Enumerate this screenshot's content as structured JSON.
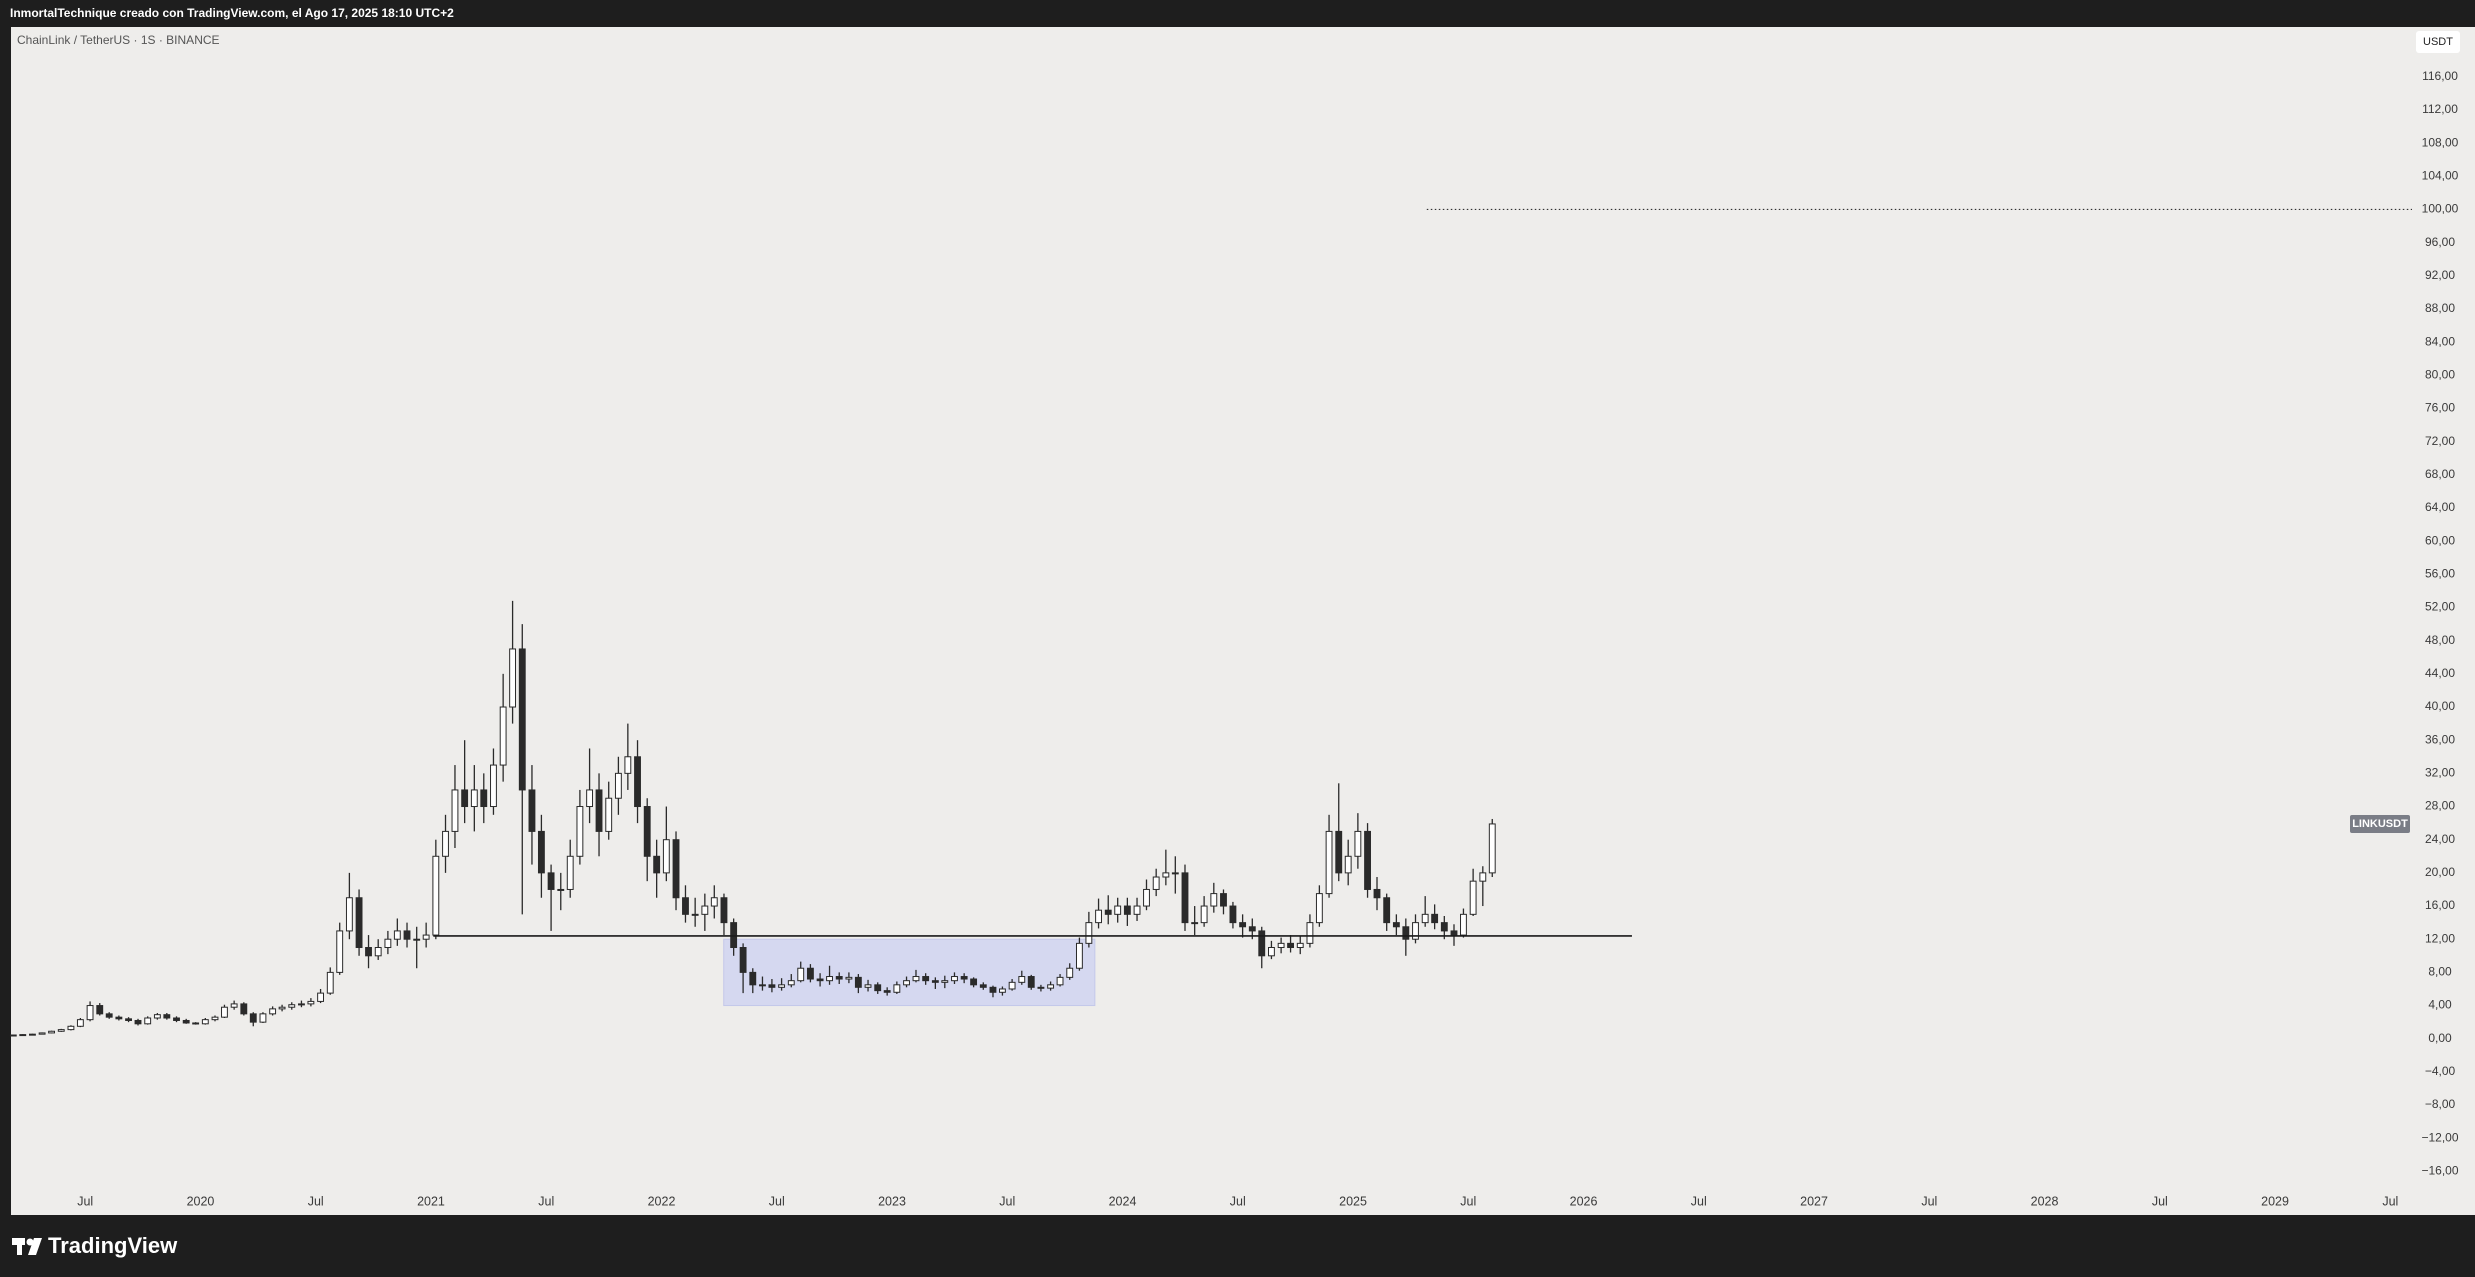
{
  "header": {
    "title": "InmortalTechnique creado con TradingView.com, el Ago 17, 2025 18:10 UTC+2"
  },
  "chart_data": {
    "type": "candlestick",
    "title": "ChainLink / TetherUS · 1S · BINANCE",
    "currency": "USDT",
    "symbol_label": "LINKUSDT",
    "up_color": "#ffffff",
    "down_color": "#2a2a2a",
    "edge_color": "#2a2a2a",
    "grid": false,
    "x": [
      2019.188,
      2019.229,
      2019.271,
      2019.313,
      2019.354,
      2019.396,
      2019.438,
      2019.479,
      2019.521,
      2019.563,
      2019.604,
      2019.646,
      2019.688,
      2019.729,
      2019.771,
      2019.813,
      2019.854,
      2019.896,
      2019.938,
      2019.979,
      2020.021,
      2020.063,
      2020.104,
      2020.146,
      2020.188,
      2020.229,
      2020.271,
      2020.313,
      2020.354,
      2020.396,
      2020.438,
      2020.479,
      2020.521,
      2020.563,
      2020.604,
      2020.646,
      2020.688,
      2020.729,
      2020.771,
      2020.813,
      2020.854,
      2020.896,
      2020.938,
      2020.979,
      2021.021,
      2021.063,
      2021.104,
      2021.146,
      2021.188,
      2021.229,
      2021.271,
      2021.313,
      2021.354,
      2021.396,
      2021.438,
      2021.479,
      2021.521,
      2021.563,
      2021.604,
      2021.646,
      2021.688,
      2021.729,
      2021.771,
      2021.813,
      2021.854,
      2021.896,
      2021.938,
      2021.979,
      2022.021,
      2022.063,
      2022.104,
      2022.146,
      2022.188,
      2022.229,
      2022.271,
      2022.313,
      2022.354,
      2022.396,
      2022.438,
      2022.479,
      2022.521,
      2022.563,
      2022.604,
      2022.646,
      2022.688,
      2022.729,
      2022.771,
      2022.813,
      2022.854,
      2022.896,
      2022.938,
      2022.979,
      2023.021,
      2023.063,
      2023.104,
      2023.146,
      2023.188,
      2023.229,
      2023.271,
      2023.313,
      2023.354,
      2023.396,
      2023.438,
      2023.479,
      2023.521,
      2023.563,
      2023.604,
      2023.646,
      2023.688,
      2023.729,
      2023.771,
      2023.813,
      2023.854,
      2023.896,
      2023.938,
      2023.979,
      2024.021,
      2024.063,
      2024.104,
      2024.146,
      2024.188,
      2024.229,
      2024.271,
      2024.313,
      2024.354,
      2024.396,
      2024.438,
      2024.479,
      2024.521,
      2024.563,
      2024.604,
      2024.646,
      2024.688,
      2024.729,
      2024.771,
      2024.813,
      2024.854,
      2024.896,
      2024.938,
      2024.979,
      2025.021,
      2025.063,
      2025.104,
      2025.146,
      2025.188,
      2025.229,
      2025.271,
      2025.313,
      2025.354,
      2025.396,
      2025.438,
      2025.479,
      2025.521,
      2025.563,
      2025.604
    ],
    "open": [
      0.4,
      0.45,
      0.5,
      0.55,
      0.7,
      0.9,
      1.1,
      1.5,
      2.3,
      4,
      3,
      2.6,
      2.4,
      2.2,
      1.8,
      2.5,
      2.9,
      2.5,
      2.2,
      1.9,
      1.8,
      2.3,
      2.6,
      3.8,
      4.2,
      3,
      2,
      3,
      3.6,
      3.8,
      4.1,
      4.2,
      4.5,
      5.5,
      8,
      13,
      17,
      11,
      10,
      11,
      12,
      13,
      12,
      12,
      12.5,
      22,
      25,
      30,
      28,
      30,
      28,
      33,
      40,
      47,
      30,
      25,
      20,
      18,
      18,
      22,
      28,
      30,
      25,
      29,
      32,
      34,
      28,
      22,
      20,
      24,
      17,
      15,
      15,
      16,
      17,
      14,
      11,
      8,
      6.5,
      6.5,
      6.2,
      6.5,
      7,
      8.5,
      7.2,
      7,
      7.5,
      7.2,
      7.4,
      6.2,
      6.5,
      5.8,
      5.6,
      6.5,
      7,
      7.5,
      7,
      6.8,
      7,
      7.5,
      7.2,
      6.5,
      6.2,
      5.6,
      6,
      6.8,
      7.5,
      6.2,
      6.1,
      6.5,
      7.4,
      8.5,
      11.5,
      14,
      15.5,
      15,
      16,
      15,
      16,
      18,
      19.5,
      20,
      20,
      14,
      14,
      16,
      17.5,
      16,
      14,
      13.5,
      13,
      10,
      11,
      11.5,
      11,
      11.5,
      14,
      17.5,
      25,
      20,
      22,
      25,
      18,
      17,
      14,
      13.5,
      12,
      14,
      15,
      14,
      13,
      12.5,
      15,
      19,
      20
    ],
    "high": [
      0.48,
      0.54,
      0.6,
      0.76,
      0.97,
      1.19,
      1.62,
      2.5,
      4.5,
      4.3,
      3.2,
      2.8,
      2.6,
      2.4,
      2.7,
      3.1,
      3.1,
      2.7,
      2.4,
      2,
      2.5,
      2.8,
      4.1,
      4.6,
      4.4,
      3.2,
      3.2,
      3.9,
      4.1,
      4.4,
      4.6,
      4.9,
      6,
      8.6,
      14,
      20,
      18,
      12.5,
      12,
      13,
      14.5,
      14,
      13.5,
      14,
      24,
      27,
      33,
      36,
      33,
      32,
      35,
      44,
      52.8,
      50,
      33,
      27,
      21,
      20,
      24,
      30,
      35,
      32,
      31,
      34,
      38,
      36,
      29,
      24,
      28,
      25,
      18.5,
      17,
      17.5,
      18.5,
      17.5,
      14.5,
      11.5,
      8.5,
      7.5,
      7.2,
      7.3,
      7.8,
      9.3,
      9,
      7.9,
      8.8,
      8,
      8,
      7.8,
      7.1,
      6.8,
      6.2,
      6.9,
      7.5,
      8.3,
      7.9,
      7.4,
      7.6,
      8,
      7.9,
      7.4,
      6.8,
      6.4,
      6.3,
      7.2,
      8.2,
      7.7,
      6.5,
      6.9,
      7.8,
      9.1,
      12.2,
      15.3,
      16.9,
      17.3,
      17,
      17,
      17,
      19.2,
      20.5,
      22.8,
      22,
      21,
      16,
      17.2,
      18.8,
      18,
      16.5,
      15,
      14.5,
      13.5,
      11.8,
      12.2,
      12.5,
      12.4,
      15,
      18.5,
      27,
      30.8,
      24,
      27.2,
      26,
      19.5,
      17.5,
      15,
      14.5,
      15,
      17.2,
      16.2,
      14.8,
      13.8,
      15.7,
      20.5,
      20.8,
      26.5
    ],
    "low": [
      0.37,
      0.42,
      0.46,
      0.51,
      0.64,
      0.83,
      1,
      1.4,
      2.1,
      2.8,
      2.4,
      2.2,
      2,
      1.6,
      1.7,
      2.3,
      2.3,
      2,
      1.8,
      1.7,
      1.7,
      2.1,
      2.5,
      3.5,
      2.8,
      1.5,
      1.9,
      2.8,
      3.3,
      3.5,
      3.8,
      3.9,
      4.3,
      5.3,
      7.7,
      12,
      10,
      8.5,
      9.5,
      10.2,
      11.2,
      11,
      8.5,
      11,
      12,
      20,
      23,
      26,
      25,
      26,
      27,
      31,
      38,
      15,
      21,
      17,
      13,
      15.5,
      17,
      21,
      26,
      22,
      24,
      27,
      30,
      26,
      19,
      17,
      19,
      15.5,
      14,
      13.5,
      13,
      14.5,
      12.5,
      10,
      5.5,
      5.5,
      5.8,
      5.6,
      5.8,
      6.2,
      6.8,
      6.8,
      6.3,
      6.5,
      6.6,
      6.7,
      5.5,
      5.7,
      5.4,
      5.2,
      5.4,
      6.2,
      6.8,
      6.5,
      6,
      6.1,
      6.6,
      6.7,
      6.2,
      5.9,
      5,
      5.2,
      5.8,
      6.5,
      5.9,
      5.7,
      5.8,
      6.3,
      7.1,
      8.2,
      11,
      13.3,
      13.8,
      14,
      13.6,
      14.2,
      15.5,
      17.2,
      18.5,
      17.5,
      13,
      12.5,
      13.5,
      15.2,
      15,
      13.3,
      12.2,
      12,
      8.5,
      9.6,
      10.3,
      10.4,
      10.2,
      11,
      13.5,
      17,
      19,
      18.5,
      20.5,
      17,
      15.5,
      13,
      12.5,
      10,
      11.5,
      13.5,
      13.2,
      12,
      11.2,
      12.2,
      14.8,
      16,
      19.5
    ],
    "close": [
      0.45,
      0.5,
      0.55,
      0.7,
      0.9,
      1.1,
      1.5,
      2.3,
      4,
      3,
      2.6,
      2.4,
      2.2,
      1.8,
      2.5,
      2.9,
      2.5,
      2.2,
      1.9,
      1.8,
      2.3,
      2.6,
      3.8,
      4.2,
      3,
      2,
      3,
      3.6,
      3.8,
      4.1,
      4.2,
      4.5,
      5.5,
      8,
      13,
      17,
      11,
      10,
      11,
      12,
      13,
      12,
      12,
      12.5,
      22,
      25,
      30,
      28,
      30,
      28,
      33,
      40,
      47,
      30,
      25,
      20,
      18,
      18,
      22,
      28,
      30,
      25,
      29,
      32,
      34,
      28,
      22,
      20,
      24,
      17,
      15,
      15,
      16,
      17,
      14,
      11,
      8,
      6.5,
      6.5,
      6.2,
      6.5,
      7,
      8.5,
      7.2,
      7,
      7.5,
      7.2,
      7.4,
      6.2,
      6.5,
      5.8,
      5.6,
      6.5,
      7,
      7.5,
      7,
      6.8,
      7,
      7.5,
      7.2,
      6.5,
      6.2,
      5.6,
      6,
      6.8,
      7.5,
      6.2,
      6.1,
      6.5,
      7.4,
      8.5,
      11.5,
      14,
      15.5,
      15,
      16,
      15,
      16,
      18,
      19.5,
      20,
      20,
      14,
      14,
      16,
      17.5,
      16,
      14,
      13.5,
      13,
      10,
      11,
      11.5,
      11,
      11.5,
      14,
      17.5,
      25,
      20,
      22,
      25,
      18,
      17,
      14,
      13.5,
      12,
      14,
      15,
      14,
      13,
      12.5,
      15,
      19,
      20,
      25.9
    ],
    "xlim": [
      2019.178,
      2029.594
    ],
    "xticks": [
      {
        "value": 2019.5,
        "label": "Jul"
      },
      2020,
      {
        "value": 2020.5,
        "label": "Jul"
      },
      2021,
      {
        "value": 2021.5,
        "label": "Jul"
      },
      2022,
      {
        "value": 2022.5,
        "label": "Jul"
      },
      2023,
      {
        "value": 2023.5,
        "label": "Jul"
      },
      2024,
      {
        "value": 2024.5,
        "label": "Jul"
      },
      2025,
      {
        "value": 2025.5,
        "label": "Jul"
      },
      2026,
      {
        "value": 2026.5,
        "label": "Jul"
      },
      2027,
      {
        "value": 2027.5,
        "label": "Jul"
      },
      2028,
      {
        "value": 2028.5,
        "label": "Jul"
      },
      2029,
      {
        "value": 2029.5,
        "label": "Jul"
      }
    ],
    "ylim": [
      -18,
      122
    ],
    "yticks": [
      {
        "value": -16,
        "label": "−16,00"
      },
      {
        "value": -12,
        "label": "−12,00"
      },
      {
        "value": -8,
        "label": "−8,00"
      },
      {
        "value": -4,
        "label": "−4,00"
      },
      {
        "value": 0,
        "label": "0,00"
      },
      {
        "value": 4,
        "label": "4,00"
      },
      {
        "value": 8,
        "label": "8,00"
      },
      {
        "value": 12,
        "label": "12,00"
      },
      {
        "value": 16,
        "label": "16,00"
      },
      {
        "value": 20,
        "label": "20,00"
      },
      {
        "value": 24,
        "label": "24,00"
      },
      {
        "value": 28,
        "label": "28,00"
      },
      {
        "value": 32,
        "label": "32,00"
      },
      {
        "value": 36,
        "label": "36,00"
      },
      {
        "value": 40,
        "label": "40,00"
      },
      {
        "value": 44,
        "label": "44,00"
      },
      {
        "value": 48,
        "label": "48,00"
      },
      {
        "value": 52,
        "label": "52,00"
      },
      {
        "value": 56,
        "label": "56,00"
      },
      {
        "value": 60,
        "label": "60,00"
      },
      {
        "value": 64,
        "label": "64,00"
      },
      {
        "value": 68,
        "label": "68,00"
      },
      {
        "value": 72,
        "label": "72,00"
      },
      {
        "value": 76,
        "label": "76,00"
      },
      {
        "value": 80,
        "label": "80,00"
      },
      {
        "value": 84,
        "label": "84,00"
      },
      {
        "value": 88,
        "label": "88,00"
      },
      {
        "value": 92,
        "label": "92,00"
      },
      {
        "value": 96,
        "label": "96,00"
      },
      {
        "value": 100,
        "label": "100,00"
      },
      {
        "value": 104,
        "label": "104,00"
      },
      {
        "value": 108,
        "label": "108,00"
      },
      {
        "value": 112,
        "label": "112,00"
      },
      {
        "value": 116,
        "label": "116,00"
      }
    ],
    "drawings": [
      {
        "type": "rectangle",
        "x": [
          2022.27,
          2023.88
        ],
        "y": [
          4,
          12
        ]
      },
      {
        "type": "horizontal_line",
        "y": 12.4,
        "x": [
          2021.01,
          2026.21
        ]
      },
      {
        "type": "horizontal_ray",
        "y": 100,
        "x": 2025.32
      }
    ]
  },
  "footer": {
    "logo": "TradingView"
  }
}
